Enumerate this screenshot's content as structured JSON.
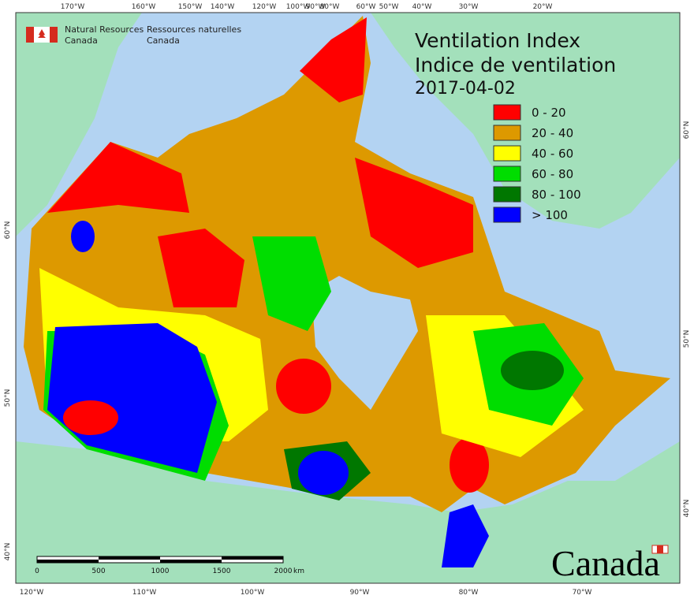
{
  "header": {
    "org_en": [
      "Natural Resources",
      "Canada"
    ],
    "org_fr": [
      "Ressources naturelles",
      "Canada"
    ]
  },
  "title": [
    "Ventilation Index",
    "Indice de ventilation"
  ],
  "date": "2017-04-02",
  "legend": [
    {
      "label": "0 - 20",
      "color": "#ff0000"
    },
    {
      "label": "20 - 40",
      "color": "#dd9900"
    },
    {
      "label": "40 - 60",
      "color": "#ffff00"
    },
    {
      "label": "60 - 80",
      "color": "#00dd00"
    },
    {
      "label": "80 - 100",
      "color": "#007700"
    },
    {
      "label": "> 100",
      "color": "#0000ff"
    }
  ],
  "graticule": {
    "top": [
      "170°W",
      "160°W",
      "150°W",
      "140°W",
      "120°W",
      "100°W",
      "90°W",
      "80°W",
      "60°W",
      "50°W",
      "40°W",
      "30°W",
      "20°W"
    ],
    "bottom": [
      "120°W",
      "110°W",
      "100°W",
      "90°W",
      "80°W",
      "70°W"
    ],
    "left": [
      "40°N",
      "50°N",
      "60°N"
    ],
    "right": [
      "60°N",
      "50°N",
      "40°N"
    ]
  },
  "scale_bar": {
    "labels": [
      "0",
      "500",
      "1000",
      "1500",
      "2000"
    ],
    "unit": "km"
  },
  "wordmark": "Canada"
}
